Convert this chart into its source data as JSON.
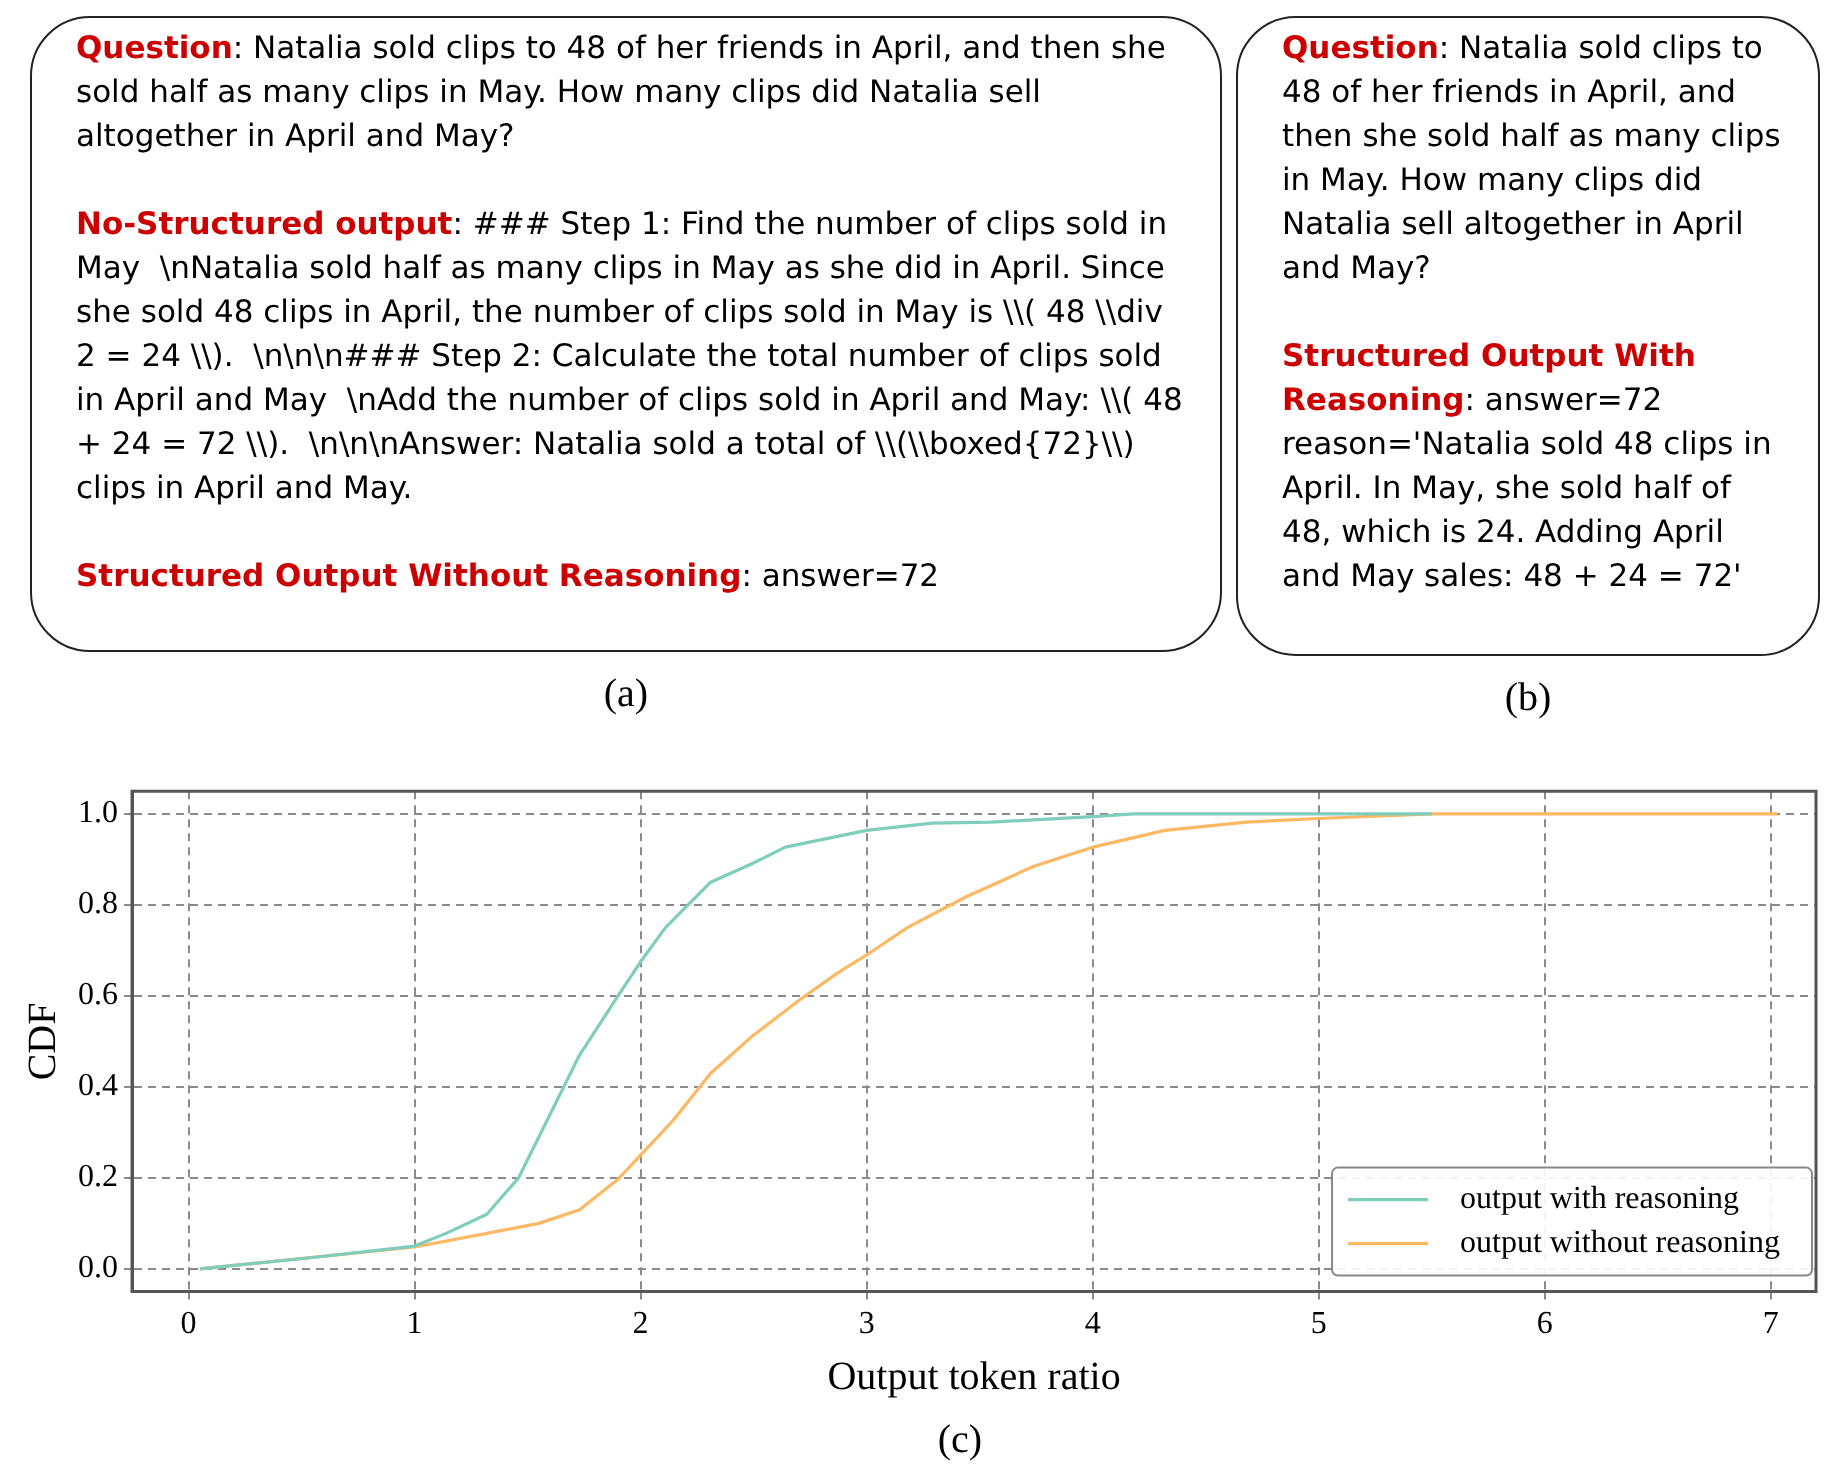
{
  "chart_data": [
    {
      "type": "other",
      "title": "(a)",
      "annotations": [
        "Question",
        ": Natalia sold clips to 48 of her friends in April, and then she sold half as many clips in May. How many clips did Natalia sell altogether in April and May?",
        "No-Structured output",
        ": ### Step 1: Find the number of clips sold in May  \\nNatalia sold half as many clips in May as she did in April. Since she sold 48 clips in April, the number of clips sold in May is \\\\( 48 \\\\div 2 = 24 \\\\).  \\n\\n\\n### Step 2: Calculate the total number of clips sold in April and May  \\nAdd the number of clips sold in April and May: \\\\( 48 + 24 = 72 \\\\).  \\n\\n\\nAnswer: Natalia sold a total of \\\\(\\\\boxed{72}\\\\) clips in April and May.",
        "Structured Output Without Reasoning",
        ": answer=72"
      ]
    },
    {
      "type": "other",
      "title": "(b)",
      "annotations": [
        "Question",
        ": Natalia sold clips to 48 of her friends in April, and then she sold half as many clips in May. How many clips did Natalia sell altogether in April and May?",
        "Structured Output With Reasoning",
        ": answer=72\nreason='Natalia sold 48 clips in April. In May, she sold half of 48, which is 24. Adding April and May sales: 48 + 24 = 72'"
      ]
    },
    {
      "type": "line",
      "title": "(c)",
      "xlabel": "Output token ratio",
      "ylabel": "CDF",
      "xlim": [
        -0.25,
        7.2
      ],
      "ylim": [
        -0.05,
        1.05
      ],
      "xticks": [
        0,
        1,
        2,
        3,
        4,
        5,
        6,
        7
      ],
      "yticks": [
        {
          "value": 0,
          "label": "0.0"
        },
        {
          "value": 0.2,
          "label": "0.2"
        },
        {
          "value": 0.4,
          "label": "0.4"
        },
        {
          "value": 0.6,
          "label": "0.6"
        },
        {
          "value": 0.8,
          "label": "0.8"
        },
        {
          "value": 1,
          "label": "1.0"
        }
      ],
      "grid": true,
      "legend": "bottom right",
      "marker": "none",
      "line_style": "solid",
      "series": [
        {
          "name": "output with reasoning",
          "color": "#7fcdbb",
          "x": [
            0.05,
            0.55,
            1.0,
            1.14,
            1.32,
            1.46,
            1.58,
            1.73,
            1.9,
            2.0,
            2.11,
            2.31,
            2.49,
            2.64,
            3.0,
            3.29,
            3.55,
            4.0,
            4.18,
            5.5
          ],
          "values": [
            0,
            0.025,
            0.05,
            0.078,
            0.12,
            0.2,
            0.32,
            0.47,
            0.6,
            0.675,
            0.75,
            0.85,
            0.89,
            0.927,
            0.964,
            0.98,
            0.982,
            0.994,
            1.0,
            1.0
          ]
        },
        {
          "name": "output without reasoning",
          "color": "#fdb863",
          "x": [
            0.05,
            1.0,
            1.32,
            1.55,
            1.73,
            1.9,
            2.0,
            2.14,
            2.31,
            2.49,
            2.7,
            2.87,
            3.0,
            3.18,
            3.44,
            3.74,
            4.0,
            4.32,
            4.68,
            5.0,
            5.5,
            7.03
          ],
          "values": [
            0,
            0.048,
            0.078,
            0.1,
            0.13,
            0.197,
            0.25,
            0.324,
            0.43,
            0.51,
            0.59,
            0.65,
            0.69,
            0.75,
            0.818,
            0.885,
            0.927,
            0.964,
            0.982,
            0.99,
            1.0,
            1.0
          ]
        }
      ]
    }
  ]
}
